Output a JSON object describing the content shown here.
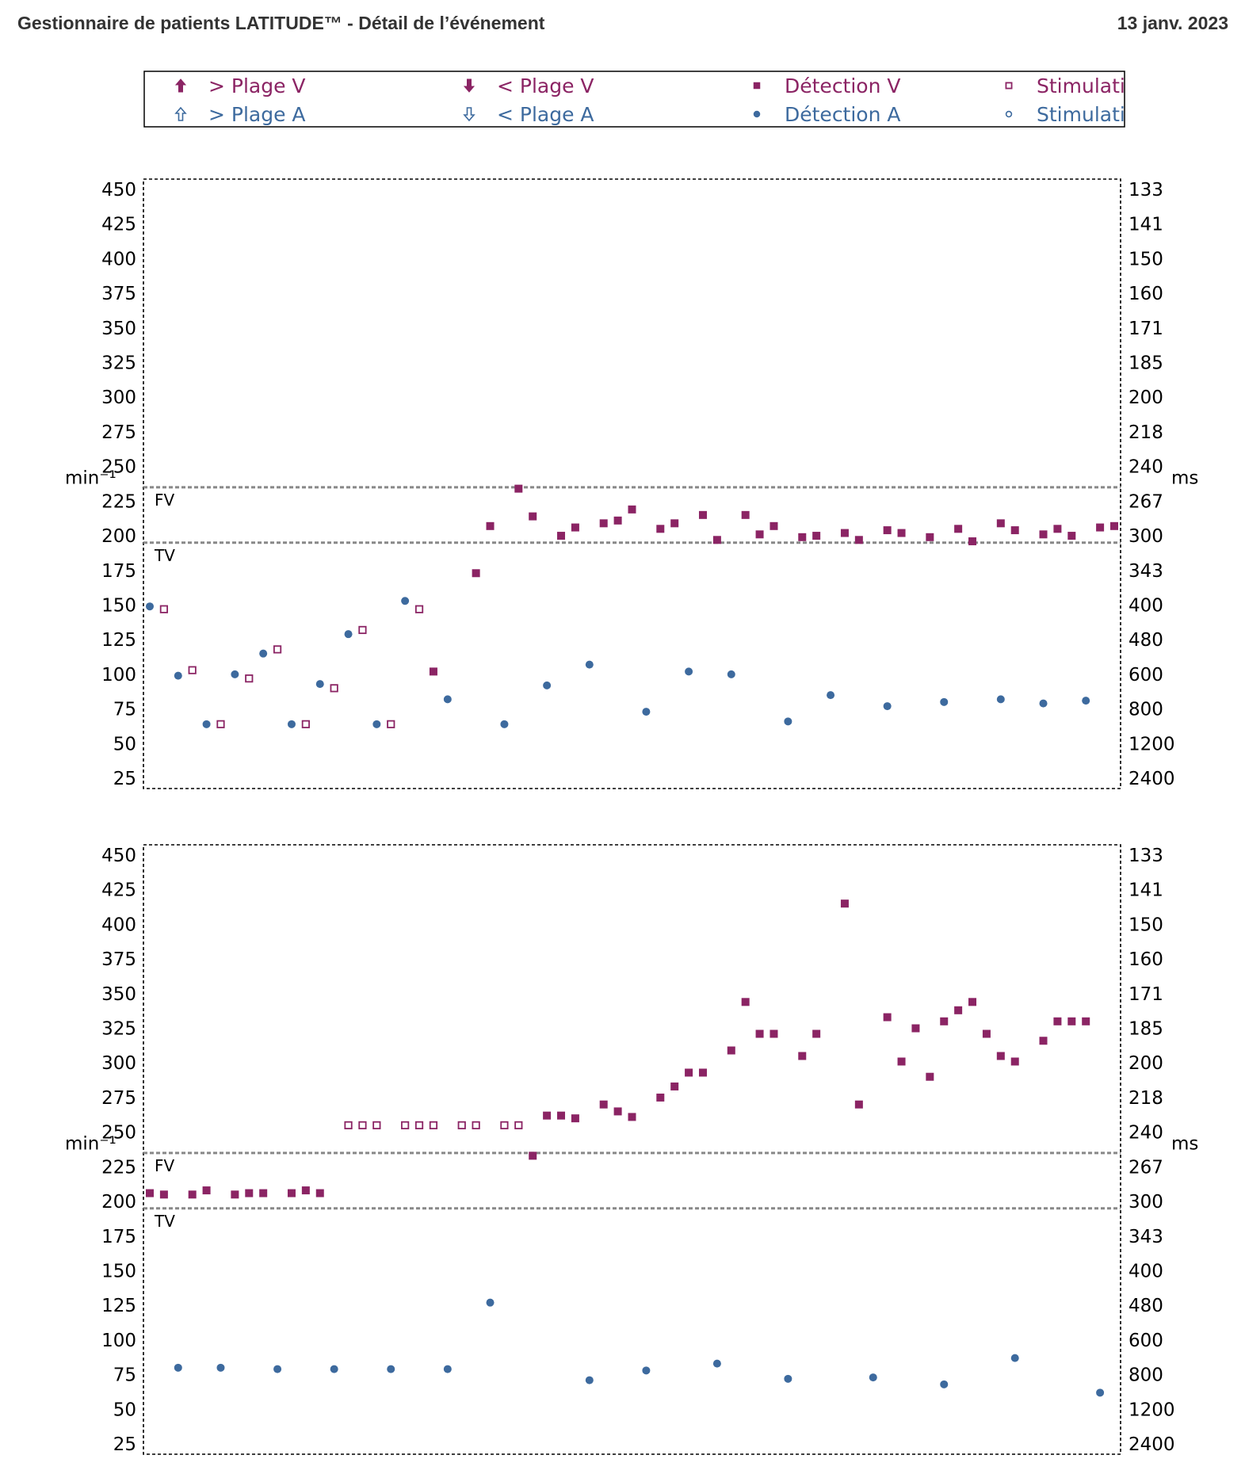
{
  "header": {
    "title": "Gestionnaire de patients LATITUDE™ - Détail de l’événement",
    "date": "13 janv. 2023"
  },
  "colors": {
    "ventricular": "#8B2464",
    "atrial": "#3D6A9E",
    "zone_line": "#888888"
  },
  "legend": {
    "items": [
      {
        "label": "> Plage V",
        "marker": "arrow-up-filled-icon",
        "chamber": "V"
      },
      {
        "label": "< Plage V",
        "marker": "arrow-down-filled-icon",
        "chamber": "V"
      },
      {
        "label": "Détection V",
        "marker": "square-filled-icon",
        "chamber": "V"
      },
      {
        "label": "Stimulation V",
        "marker": "square-open-icon",
        "chamber": "V"
      },
      {
        "label": "> Plage A",
        "marker": "arrow-up-open-icon",
        "chamber": "A"
      },
      {
        "label": "< Plage A",
        "marker": "arrow-down-open-icon",
        "chamber": "A"
      },
      {
        "label": "Détection A",
        "marker": "circle-filled-icon",
        "chamber": "A"
      },
      {
        "label": "Stimulation A",
        "marker": "circle-open-icon",
        "chamber": "A"
      }
    ]
  },
  "chart_data": [
    {
      "type": "scatter",
      "ylabel_left": "min⁻¹",
      "ylabel_right": "ms",
      "ylim": [
        25,
        450
      ],
      "yticks_left": [
        25,
        50,
        75,
        100,
        125,
        150,
        175,
        200,
        225,
        250,
        275,
        300,
        325,
        350,
        375,
        400,
        425,
        450
      ],
      "yticks_right": [
        "2400",
        "1200",
        "800",
        "600",
        "480",
        "400",
        "343",
        "300",
        "267",
        "240",
        "218",
        "200",
        "185",
        "171",
        "160",
        "150",
        "141",
        "133"
      ],
      "xlim": [
        0,
        68
      ],
      "grid": false,
      "zones": [
        {
          "name": "FV",
          "value": 235
        },
        {
          "name": "TV",
          "value": 195
        }
      ],
      "series": [
        {
          "name": "Détection V",
          "marker": "square-filled",
          "x": [
            20,
            23,
            24,
            26,
            27,
            29,
            30,
            32,
            33,
            34,
            36,
            37,
            39,
            40,
            42,
            43,
            44,
            46,
            47,
            49,
            50,
            52,
            53,
            55,
            57,
            58,
            60,
            61,
            63,
            64,
            65,
            67,
            68
          ],
          "y": [
            102,
            173,
            207,
            234,
            214,
            200,
            206,
            209,
            211,
            219,
            205,
            209,
            215,
            197,
            215,
            201,
            207,
            199,
            200,
            202,
            197,
            204,
            202,
            199,
            205,
            196,
            209,
            204,
            201,
            205,
            200,
            206,
            207
          ]
        },
        {
          "name": "Stimulation V",
          "marker": "square-open",
          "x": [
            1,
            3,
            5,
            7,
            9,
            11,
            13,
            15,
            17,
            19
          ],
          "y": [
            147,
            103,
            64,
            97,
            118,
            64,
            90,
            132,
            64,
            147
          ]
        },
        {
          "name": "Détection A",
          "marker": "circle-filled",
          "x": [
            0,
            2,
            4,
            6,
            8,
            10,
            12,
            14,
            16,
            18,
            21,
            25,
            28,
            31,
            35,
            38,
            41,
            45,
            48,
            52,
            56,
            60,
            63,
            66
          ],
          "y": [
            149,
            99,
            64,
            100,
            115,
            64,
            93,
            129,
            64,
            153,
            82,
            64,
            92,
            107,
            73,
            102,
            100,
            66,
            85,
            77,
            80,
            82,
            79,
            81
          ]
        }
      ]
    },
    {
      "type": "scatter",
      "ylabel_left": "min⁻¹",
      "ylabel_right": "ms",
      "ylim": [
        25,
        450
      ],
      "yticks_left": [
        25,
        50,
        75,
        100,
        125,
        150,
        175,
        200,
        225,
        250,
        275,
        300,
        325,
        350,
        375,
        400,
        425,
        450
      ],
      "yticks_right": [
        "2400",
        "1200",
        "800",
        "600",
        "480",
        "400",
        "343",
        "300",
        "267",
        "240",
        "218",
        "200",
        "185",
        "171",
        "160",
        "150",
        "141",
        "133"
      ],
      "xlim": [
        0,
        68
      ],
      "grid": false,
      "zones": [
        {
          "name": "FV",
          "value": 235
        },
        {
          "name": "TV",
          "value": 195
        }
      ],
      "series": [
        {
          "name": "Détection V",
          "marker": "square-filled",
          "x": [
            0,
            1,
            3,
            4,
            6,
            7,
            8,
            10,
            11,
            12,
            27,
            28,
            29,
            30,
            32,
            33,
            34,
            36,
            37,
            38,
            39,
            41,
            42,
            43,
            44,
            46,
            47,
            49,
            50,
            52,
            53,
            54,
            55,
            56,
            57,
            58,
            59,
            60,
            61,
            63,
            64,
            65,
            66
          ],
          "y": [
            206,
            205,
            205,
            208,
            205,
            206,
            206,
            206,
            208,
            206,
            233,
            262,
            262,
            260,
            270,
            265,
            261,
            275,
            283,
            293,
            293,
            309,
            344,
            321,
            321,
            305,
            321,
            415,
            270,
            333,
            301,
            325,
            290,
            330,
            338,
            344,
            321,
            305,
            301,
            316,
            330,
            330,
            330
          ]
        },
        {
          "name": "Stimulation V",
          "marker": "square-open",
          "x": [
            14,
            15,
            16,
            18,
            19,
            20,
            22,
            23,
            25,
            26
          ],
          "y": [
            255,
            255,
            255,
            255,
            255,
            255,
            255,
            255,
            255,
            255
          ]
        },
        {
          "name": "Détection A",
          "marker": "circle-filled",
          "x": [
            2,
            5,
            9,
            13,
            17,
            21,
            24,
            31,
            35,
            40,
            45,
            51,
            56,
            61,
            67
          ],
          "y": [
            80,
            80,
            79,
            79,
            79,
            79,
            127,
            71,
            78,
            83,
            72,
            73,
            68,
            87,
            62
          ]
        }
      ]
    }
  ]
}
